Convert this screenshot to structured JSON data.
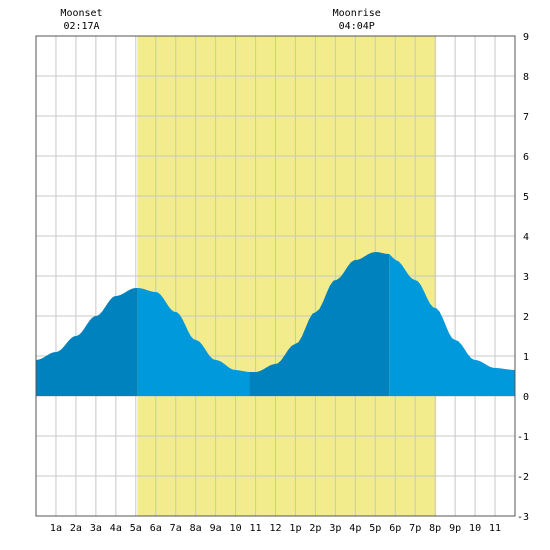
{
  "chart_data": {
    "type": "area",
    "x_ticks": [
      "1a",
      "2a",
      "3a",
      "4a",
      "5a",
      "6a",
      "7a",
      "8a",
      "9a",
      "10",
      "11",
      "12",
      "1p",
      "2p",
      "3p",
      "4p",
      "5p",
      "6p",
      "7p",
      "8p",
      "9p",
      "10",
      "11"
    ],
    "y_ticks": [
      "9",
      "8",
      "7",
      "6",
      "5",
      "4",
      "3",
      "2",
      "1",
      "0",
      "-1",
      "-2",
      "-3"
    ],
    "ylim": [
      -3,
      9
    ],
    "xlim_hours": [
      0,
      24
    ],
    "grid": true,
    "daylight": {
      "start_hour": 5.08,
      "end_hour": 20.05,
      "color": "#f2ec8c"
    },
    "moon_events": [
      {
        "label": "Moonset",
        "time": "02:17A",
        "hour": 2.28
      },
      {
        "label": "Moonrise",
        "time": "04:04P",
        "hour": 16.07
      }
    ],
    "tide_series": {
      "name": "",
      "x_hours": [
        0.0,
        1.0,
        2.0,
        3.0,
        4.0,
        5.0,
        5.1,
        6.0,
        7.0,
        8.0,
        9.0,
        10.0,
        10.7,
        11.0,
        12.0,
        13.0,
        14.0,
        15.0,
        16.0,
        17.0,
        17.7,
        18.0,
        19.0,
        20.0,
        21.0,
        22.0,
        23.0,
        24.0
      ],
      "y_values": [
        0.9,
        1.1,
        1.5,
        2.0,
        2.5,
        2.7,
        2.7,
        2.6,
        2.1,
        1.4,
        0.9,
        0.65,
        0.6,
        0.6,
        0.8,
        1.3,
        2.1,
        2.9,
        3.4,
        3.6,
        3.55,
        3.4,
        2.9,
        2.2,
        1.4,
        0.9,
        0.7,
        0.65
      ]
    },
    "tide_extremes": [
      {
        "kind": "high",
        "hour": 5.1,
        "value": 2.7
      },
      {
        "kind": "low",
        "hour": 10.7,
        "value": 0.6
      },
      {
        "kind": "high",
        "hour": 17.7,
        "value": 3.55
      }
    ],
    "colors": {
      "rising": "#0082be",
      "falling": "#0099dc",
      "grid": "#c8c8c8",
      "frame": "#555555"
    }
  }
}
